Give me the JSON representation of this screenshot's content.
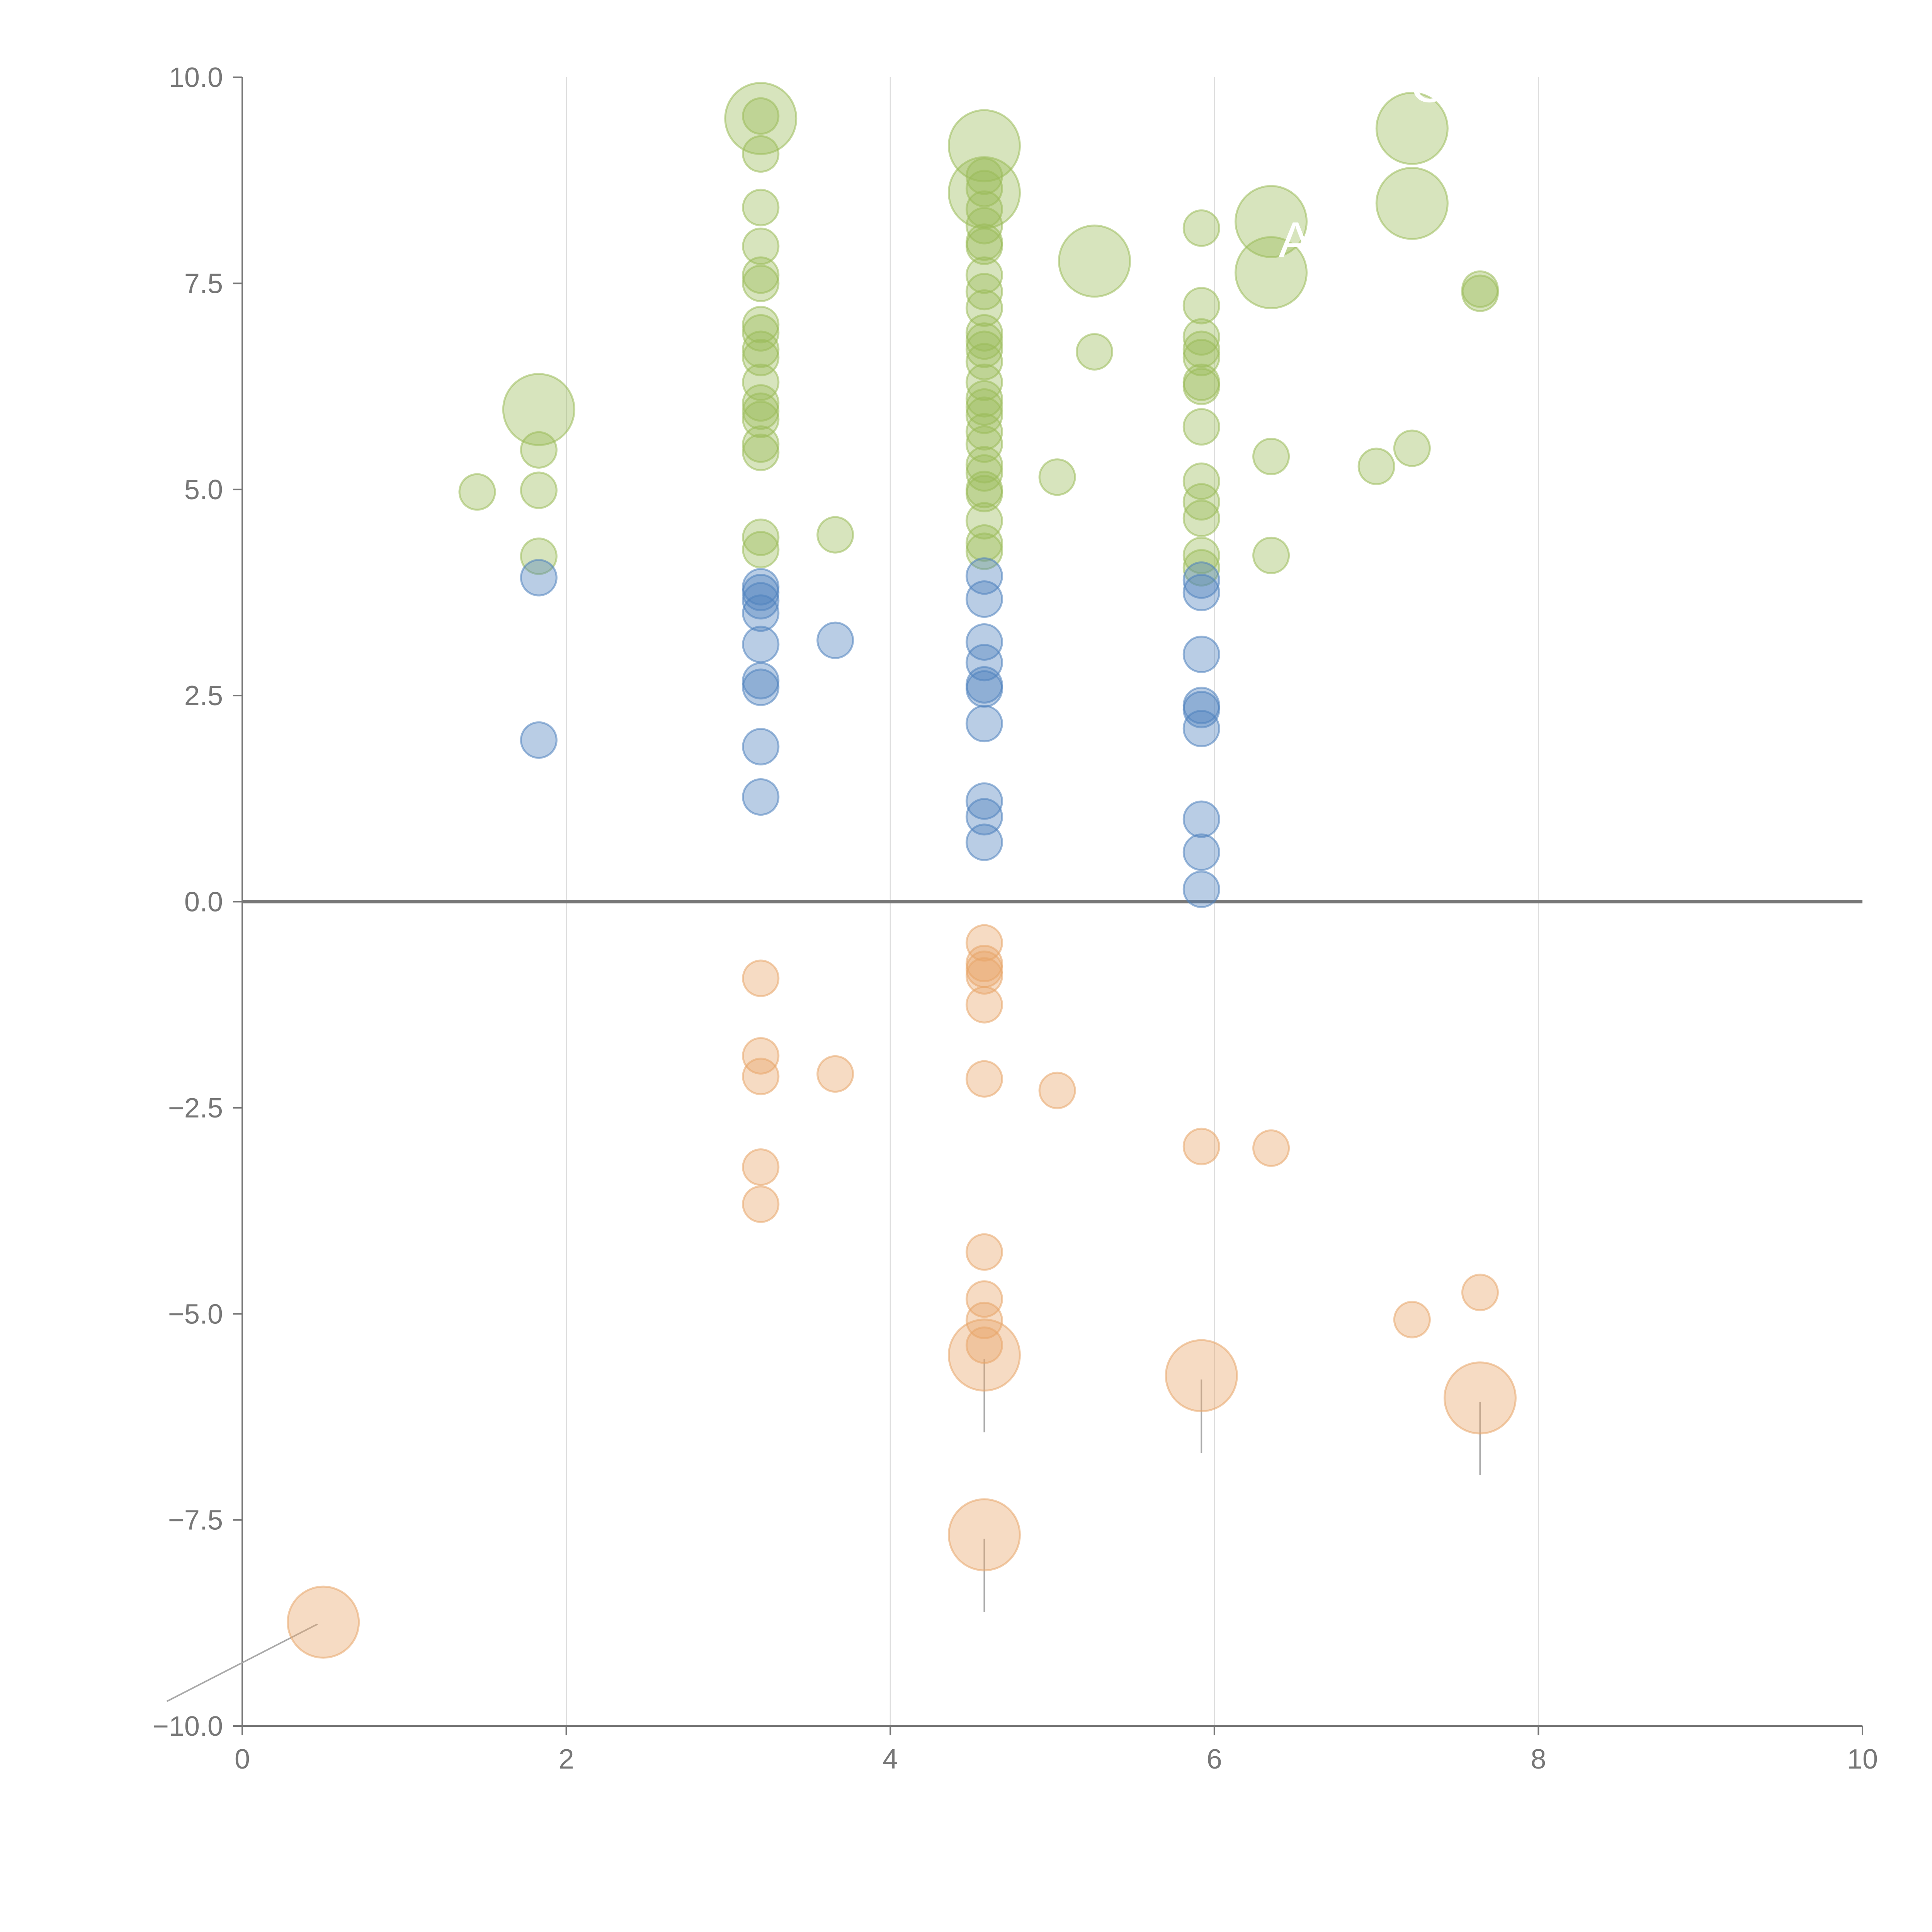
{
  "chart_data": {
    "type": "scatter",
    "title": "",
    "xlabel": "",
    "ylabel": "",
    "xlim": [
      0,
      10
    ],
    "ylim": [
      -10,
      10
    ],
    "x_ticks": [
      0,
      2,
      4,
      6,
      8,
      10
    ],
    "y_ticks": [
      -10,
      -7.5,
      -5,
      -2.5,
      0,
      2.5,
      5,
      7.5,
      10
    ],
    "x_tick_labels": [
      "0",
      "2",
      "4",
      "6",
      "8",
      "10"
    ],
    "y_tick_labels": [
      "−10.0",
      "−7.5",
      "−5.0",
      "−2.5",
      "0.0",
      "2.5",
      "5.0",
      "7.5",
      "10.0"
    ],
    "grid": "vertical",
    "zero_line": true,
    "colors": {
      "green": "#9bbb59",
      "blue": "#4f81bd",
      "orange": "#e8a66a",
      "axis": "#777777",
      "grid": "#dddddd"
    },
    "series": [
      {
        "name": "green",
        "color": "#9bbb59",
        "points": [
          [
            1.45,
            4.97
          ],
          [
            1.83,
            5.48
          ],
          [
            1.83,
            4.99
          ],
          [
            1.83,
            4.19
          ],
          [
            3.2,
            9.53
          ],
          [
            3.2,
            9.07
          ],
          [
            3.2,
            8.42
          ],
          [
            3.2,
            7.95
          ],
          [
            3.2,
            7.6
          ],
          [
            3.2,
            7.5
          ],
          [
            3.2,
            7.0
          ],
          [
            3.2,
            6.9
          ],
          [
            3.2,
            6.7
          ],
          [
            3.2,
            6.6
          ],
          [
            3.2,
            6.3
          ],
          [
            3.2,
            6.05
          ],
          [
            3.2,
            5.95
          ],
          [
            3.2,
            5.85
          ],
          [
            3.2,
            5.55
          ],
          [
            3.2,
            5.45
          ],
          [
            3.2,
            4.42
          ],
          [
            3.2,
            4.27
          ],
          [
            3.66,
            4.45
          ],
          [
            4.58,
            8.8
          ],
          [
            4.58,
            8.65
          ],
          [
            4.58,
            8.4
          ],
          [
            4.58,
            8.2
          ],
          [
            4.58,
            8.0
          ],
          [
            4.58,
            7.95
          ],
          [
            4.58,
            7.6
          ],
          [
            4.58,
            7.4
          ],
          [
            4.58,
            7.2
          ],
          [
            4.58,
            6.9
          ],
          [
            4.58,
            6.8
          ],
          [
            4.58,
            6.7
          ],
          [
            4.58,
            6.55
          ],
          [
            4.58,
            6.3
          ],
          [
            4.58,
            6.1
          ],
          [
            4.58,
            6.0
          ],
          [
            4.58,
            5.9
          ],
          [
            4.58,
            5.7
          ],
          [
            4.58,
            5.55
          ],
          [
            4.58,
            5.3
          ],
          [
            4.58,
            5.2
          ],
          [
            4.58,
            5.0
          ],
          [
            4.58,
            4.95
          ],
          [
            4.58,
            4.62
          ],
          [
            4.58,
            4.35
          ],
          [
            4.58,
            4.25
          ],
          [
            5.03,
            5.15
          ],
          [
            5.26,
            6.67
          ],
          [
            5.92,
            8.17
          ],
          [
            5.92,
            7.23
          ],
          [
            5.92,
            6.85
          ],
          [
            5.92,
            6.7
          ],
          [
            5.92,
            6.6
          ],
          [
            5.92,
            6.3
          ],
          [
            5.92,
            6.25
          ],
          [
            5.92,
            5.76
          ],
          [
            5.92,
            5.1
          ],
          [
            5.92,
            4.85
          ],
          [
            5.92,
            4.65
          ],
          [
            5.92,
            4.2
          ],
          [
            5.92,
            4.05
          ],
          [
            6.35,
            5.4
          ],
          [
            6.35,
            4.2
          ],
          [
            7.0,
            5.28
          ],
          [
            7.22,
            5.5
          ],
          [
            7.64,
            7.43
          ],
          [
            7.64,
            7.38
          ]
        ],
        "large_points": [
          [
            1.83,
            5.97
          ],
          [
            3.2,
            9.5
          ],
          [
            4.58,
            9.17
          ],
          [
            4.58,
            8.6
          ],
          [
            5.26,
            7.77
          ],
          [
            6.35,
            8.25
          ],
          [
            6.35,
            7.63
          ],
          [
            7.22,
            9.38
          ],
          [
            7.22,
            8.47
          ]
        ]
      },
      {
        "name": "blue",
        "color": "#4f81bd",
        "points": [
          [
            1.83,
            3.93
          ],
          [
            1.83,
            1.96
          ],
          [
            3.2,
            3.82
          ],
          [
            3.2,
            3.75
          ],
          [
            3.2,
            3.65
          ],
          [
            3.2,
            3.5
          ],
          [
            3.2,
            3.12
          ],
          [
            3.2,
            2.68
          ],
          [
            3.2,
            2.6
          ],
          [
            3.2,
            1.88
          ],
          [
            3.2,
            1.27
          ],
          [
            3.66,
            3.17
          ],
          [
            4.58,
            3.95
          ],
          [
            4.58,
            3.67
          ],
          [
            4.58,
            3.15
          ],
          [
            4.58,
            2.9
          ],
          [
            4.58,
            2.63
          ],
          [
            4.58,
            2.58
          ],
          [
            4.58,
            2.16
          ],
          [
            4.58,
            1.22
          ],
          [
            4.58,
            1.03
          ],
          [
            4.58,
            0.72
          ],
          [
            5.92,
            3.9
          ],
          [
            5.92,
            3.75
          ],
          [
            5.92,
            3.0
          ],
          [
            5.92,
            2.38
          ],
          [
            5.92,
            2.33
          ],
          [
            5.92,
            2.1
          ],
          [
            5.92,
            1.0
          ],
          [
            5.92,
            0.6
          ],
          [
            5.92,
            0.15
          ]
        ],
        "large_points": []
      },
      {
        "name": "orange",
        "color": "#e8a66a",
        "points": [
          [
            3.2,
            -0.93
          ],
          [
            3.2,
            -1.87
          ],
          [
            3.2,
            -2.12
          ],
          [
            3.2,
            -3.22
          ],
          [
            3.2,
            -3.67
          ],
          [
            3.66,
            -2.09
          ],
          [
            4.58,
            -0.5
          ],
          [
            4.58,
            -0.75
          ],
          [
            4.58,
            -0.82
          ],
          [
            4.58,
            -0.9
          ],
          [
            4.58,
            -1.25
          ],
          [
            4.58,
            -2.15
          ],
          [
            4.58,
            -4.25
          ],
          [
            4.58,
            -4.82
          ],
          [
            4.58,
            -5.08
          ],
          [
            4.58,
            -5.38
          ],
          [
            5.03,
            -2.29
          ],
          [
            5.92,
            -2.97
          ],
          [
            6.35,
            -2.99
          ],
          [
            7.22,
            -5.07
          ],
          [
            7.64,
            -4.74
          ]
        ],
        "large_points": [
          [
            0.5,
            -8.74
          ],
          [
            4.58,
            -5.5
          ],
          [
            4.58,
            -7.68
          ],
          [
            5.92,
            -5.75
          ],
          [
            7.64,
            -6.02
          ]
        ]
      }
    ],
    "annotations": [
      {
        "text": "A",
        "x": 6.5,
        "y": 7.82
      },
      {
        "text": "C",
        "x": 7.32,
        "y": 9.7
      }
    ]
  }
}
